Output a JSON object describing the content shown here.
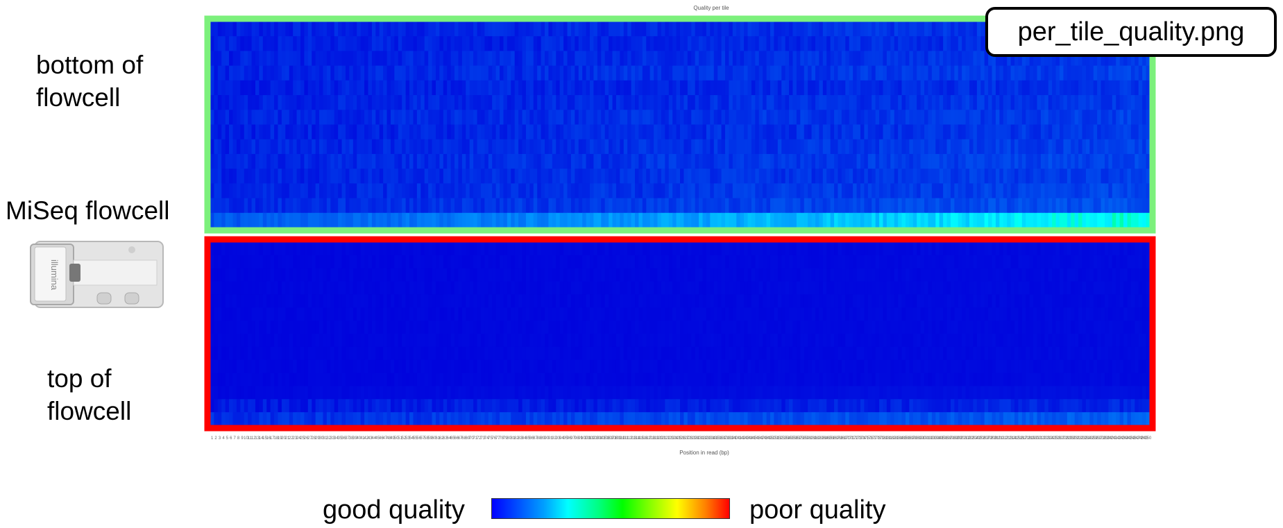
{
  "chart_data": {
    "type": "heatmap",
    "title": "Quality per tile",
    "xlabel": "Position in read (bp)",
    "x_tick_labels_start": 1,
    "x_tick_labels_end": 250,
    "panels": [
      {
        "name": "bottom of flowcell",
        "border_color": "#7cf07c",
        "rows": 14,
        "columns": 250,
        "quality_note": "mostly good, last row shows mild degradation toward end of read",
        "row_intensity": [
          0.06,
          0.05,
          0.06,
          0.07,
          0.05,
          0.06,
          0.07,
          0.06,
          0.07,
          0.08,
          0.07,
          0.08,
          0.1,
          0.32
        ]
      },
      {
        "name": "top of flowcell",
        "border_color": "#ff0000",
        "rows": 14,
        "columns": 250,
        "quality_note": "uniformly good, slight variation at last row end",
        "row_intensity": [
          0.01,
          0.01,
          0.01,
          0.01,
          0.01,
          0.01,
          0.01,
          0.01,
          0.01,
          0.01,
          0.01,
          0.02,
          0.03,
          0.12
        ]
      }
    ],
    "colorscale": [
      "#0000ff",
      "#00ffff",
      "#00ff00",
      "#ffff00",
      "#ff0000"
    ]
  },
  "labels": {
    "bottom": "bottom of\nflowcell",
    "miseq": "MiSeq flowcell",
    "top": "top of\nflowcell",
    "file": "per_tile_quality.png",
    "good": "good quality",
    "poor": "poor quality",
    "brand": "illumina"
  }
}
